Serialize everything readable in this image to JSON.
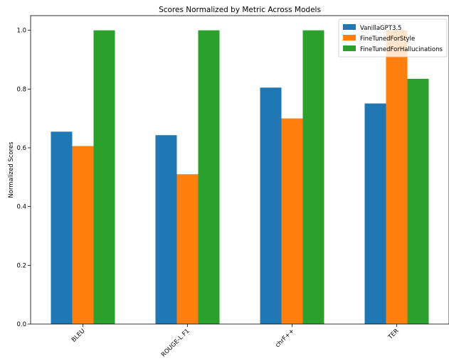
{
  "chart_data": {
    "type": "bar",
    "title": "Scores Normalized by Metric Across Models",
    "xlabel": "",
    "ylabel": "Normalized Scores",
    "categories": [
      "BLEU",
      "ROUGE-L F1",
      "chrF++",
      "TER"
    ],
    "series": [
      {
        "name": "VanillaGPT3.5",
        "values": [
          0.655,
          0.643,
          0.805,
          0.751
        ],
        "color": "#1f77b4"
      },
      {
        "name": "FineTunedForStyle",
        "values": [
          0.606,
          0.51,
          0.7,
          1.0
        ],
        "color": "#ff7f0e"
      },
      {
        "name": "FineTunedForHallucinations",
        "values": [
          1.0,
          1.0,
          1.0,
          0.835
        ],
        "color": "#2ca02c"
      }
    ],
    "ylim": [
      0,
      1.05
    ],
    "yticks": [
      "0.0",
      "0.2",
      "0.4",
      "0.6",
      "0.8",
      "1.0"
    ],
    "grid": false,
    "legend_position": "top-right"
  }
}
